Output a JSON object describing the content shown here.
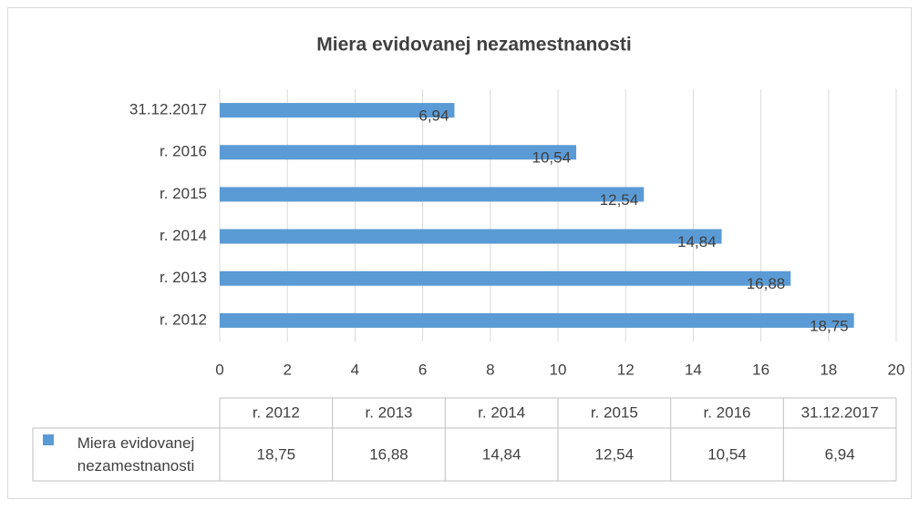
{
  "chart_data": {
    "type": "bar",
    "orientation": "horizontal",
    "title": "Miera evidovanej nezamestnanosti",
    "categories": [
      "r. 2012",
      "r. 2013",
      "r. 2014",
      "r. 2015",
      "r. 2016",
      "31.12.2017"
    ],
    "series": [
      {
        "name": "Miera evidovanej nezamestnanosti",
        "color": "#5b9bd5",
        "values": [
          18.75,
          16.88,
          14.84,
          12.54,
          10.54,
          6.94
        ],
        "value_labels": [
          "18,75",
          "16,88",
          "14,84",
          "12,54",
          "10,54",
          "6,94"
        ]
      }
    ],
    "xlim": [
      0,
      20
    ],
    "xticks": [
      0,
      2,
      4,
      6,
      8,
      10,
      12,
      14,
      16,
      18,
      20
    ],
    "grid": true,
    "data_table": true
  }
}
